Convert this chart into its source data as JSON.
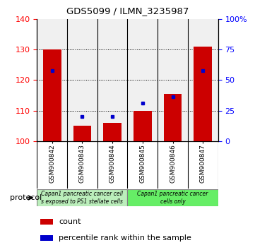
{
  "title": "GDS5099 / ILMN_3235987",
  "samples": [
    "GSM900842",
    "GSM900843",
    "GSM900844",
    "GSM900845",
    "GSM900846",
    "GSM900847"
  ],
  "count_values": [
    130.0,
    105.0,
    106.0,
    110.0,
    115.5,
    131.0
  ],
  "percentile_values": [
    123.0,
    108.0,
    108.0,
    112.5,
    114.5,
    123.0
  ],
  "ylim_left": [
    100,
    140
  ],
  "yticks_left": [
    100,
    110,
    120,
    130,
    140
  ],
  "ylim_right": [
    0,
    100
  ],
  "yticks_right": [
    0,
    25,
    50,
    75,
    100
  ],
  "yticklabels_right": [
    "0",
    "25",
    "50",
    "75",
    "100%"
  ],
  "bar_color": "#cc0000",
  "marker_color": "#0000cc",
  "bar_width": 0.6,
  "protocol_left_label": "Capan1 pancreatic cancer cell\ns exposed to PS1 stellate cells",
  "protocol_right_label": "Capan1 pancreatic cancer\ncells only",
  "protocol_left_color": "#bbeebb",
  "protocol_right_color": "#66ee66",
  "protocol_label": "protocol",
  "legend_count_label": "count",
  "legend_percentile_label": "percentile rank within the sample"
}
